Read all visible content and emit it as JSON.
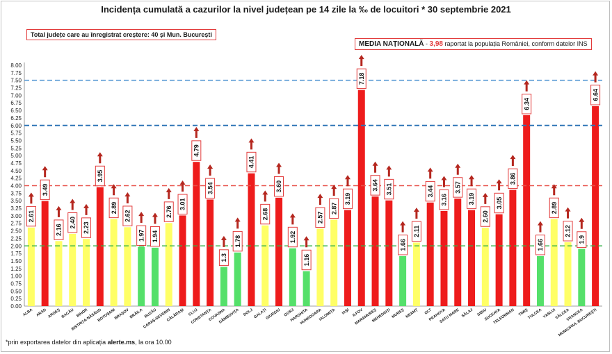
{
  "title": "Incidența cumulată a cazurilor la nivel județean pe 14 zile la ‰ de locuitori * 30 septembrie 2021",
  "total_box": "Total județe care au înregistrat creștere:  40 și Mun. București",
  "media_box": {
    "label": "MEDIA NAȚIONALĂ",
    "separator": " - ",
    "value": "3,98",
    "suffix": " raportat la populația României, conform datelor INS"
  },
  "footnote": {
    "prefix": "*prin exportarea datelor din aplicația ",
    "source": "alerte.ms",
    "suffix": ", la ora 10.00"
  },
  "colors": {
    "red": "#ee1c1c",
    "yellow": "#ffff66",
    "green": "#55e06a",
    "arrow": "#b5271f",
    "line_blue": "#2e75b6",
    "line_red": "#e8524a",
    "line_green": "#33b24a",
    "line_lightblue": "#5b9bd5"
  },
  "chart_data": {
    "type": "bar",
    "ylim": [
      0,
      8
    ],
    "yticks": [
      "0.00",
      "0.25",
      "0.50",
      "0.75",
      "1.00",
      "1.25",
      "1.50",
      "1.75",
      "2.00",
      "2.25",
      "2.50",
      "2.75",
      "3.00",
      "3.25",
      "3.50",
      "3.75",
      "4.00",
      "4.25",
      "4.50",
      "4.75",
      "5.00",
      "5.25",
      "5.50",
      "5.75",
      "6.00",
      "6.25",
      "6.50",
      "6.75",
      "7.00",
      "7.25",
      "7.50",
      "7.75",
      "8.00"
    ],
    "categories": [
      "ALBA",
      "ARAD",
      "ARGEȘ",
      "BACĂU",
      "BIHOR",
      "BISTRIȚA-NĂSĂUD",
      "BOTOȘANI",
      "BRAȘOV",
      "BRĂILA",
      "BUZĂU",
      "CARAȘ-SEVERIN",
      "CĂLĂRAȘI",
      "CLUJ",
      "CONSTANȚA",
      "COVASNA",
      "DÂMBOVIȚA",
      "DOLJ",
      "GALAȚI",
      "GIURGIU",
      "GORJ",
      "HARGHITA",
      "HUNEDOARA",
      "IALOMIȚA",
      "IAȘI",
      "ILFOV",
      "MARAMUREȘ",
      "MEHEDINȚI",
      "MUREȘ",
      "NEAMȚ",
      "OLT",
      "PRAHOVA",
      "SATU MARE",
      "SĂLAJ",
      "SIBIU",
      "SUCEAVA",
      "TELEORMAN",
      "TIMIȘ",
      "TULCEA",
      "VASLUI",
      "VÂLCEA",
      "VRANCEA",
      "MUNICIPIUL BUCUREȘTI"
    ],
    "values": [
      2.61,
      3.49,
      2.16,
      2.4,
      2.23,
      3.95,
      2.89,
      2.62,
      1.97,
      1.94,
      2.76,
      3.01,
      4.79,
      3.54,
      1.3,
      1.78,
      4.41,
      2.68,
      3.6,
      1.92,
      1.16,
      2.57,
      2.87,
      3.19,
      7.18,
      3.64,
      3.51,
      1.66,
      2.11,
      3.44,
      3.16,
      3.57,
      3.19,
      2.6,
      3.05,
      3.86,
      6.34,
      1.66,
      2.89,
      2.12,
      1.9,
      6.64
    ],
    "labels": [
      "2.61",
      "3.49",
      "2.16",
      "2.40",
      "2.23",
      "3.95",
      "2.89",
      "2.62",
      "1.97",
      "1.94",
      "2.76",
      "3.01",
      "4.79",
      "3.54",
      "1.3",
      "1.78",
      "4.41",
      "2.68",
      "3.60",
      "1.92",
      "1.16",
      "2.57",
      "2.87",
      "3.19",
      "7.18",
      "3.64",
      "3.51",
      "1.66",
      "2.11",
      "3.44",
      "3.16",
      "3.57",
      "3.19",
      "2.60",
      "3.05",
      "3.86",
      "6.34",
      "1.66",
      "2.89",
      "2.12",
      "1.9",
      "6.64"
    ],
    "colors": [
      "yellow",
      "red",
      "yellow",
      "yellow",
      "yellow",
      "red",
      "yellow",
      "yellow",
      "green",
      "green",
      "yellow",
      "red",
      "red",
      "red",
      "green",
      "green",
      "red",
      "yellow",
      "red",
      "green",
      "green",
      "yellow",
      "yellow",
      "red",
      "red",
      "red",
      "red",
      "green",
      "yellow",
      "red",
      "red",
      "red",
      "red",
      "yellow",
      "red",
      "red",
      "red",
      "green",
      "yellow",
      "yellow",
      "green",
      "red"
    ],
    "trend": "all-increasing",
    "reference_lines": [
      {
        "value": 7.5,
        "color": "line_lightblue",
        "style": "dashed"
      },
      {
        "value": 6.0,
        "color": "line_blue",
        "style": "dashed"
      },
      {
        "value": 4.0,
        "color": "line_red",
        "style": "dashed"
      },
      {
        "value": 2.0,
        "color": "line_green",
        "style": "dashed"
      }
    ]
  }
}
